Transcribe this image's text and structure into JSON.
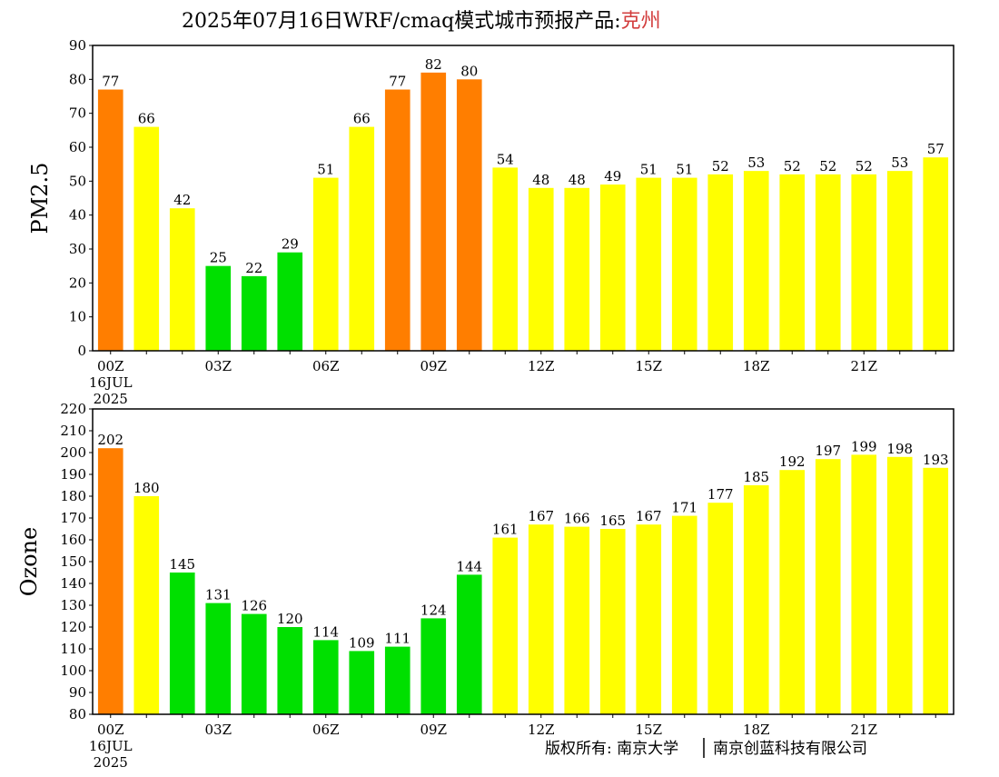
{
  "header": {
    "title_prefix": "2025年07月16日WRF/cmaq模式城市预报产品:",
    "city": "克州",
    "city_color": "#d23c3c"
  },
  "footer": {
    "copyright_left": "版权所有: 南京大学",
    "copyright_right": "南京创蓝科技有限公司"
  },
  "colors": {
    "good": "#00e000",
    "moderate": "#ffff00",
    "unhealthy_sensitive": "#ff7e00"
  },
  "chart_data": [
    {
      "type": "bar",
      "ylabel": "PM2.5",
      "ylim": [
        0,
        90
      ],
      "yticks": [
        0,
        10,
        20,
        30,
        40,
        50,
        60,
        70,
        80,
        90
      ],
      "xtick_labels": [
        {
          "index": 0,
          "lines": [
            "00Z",
            "16JUL",
            "2025"
          ]
        },
        {
          "index": 3,
          "lines": [
            "03Z"
          ]
        },
        {
          "index": 6,
          "lines": [
            "06Z"
          ]
        },
        {
          "index": 9,
          "lines": [
            "09Z"
          ]
        },
        {
          "index": 12,
          "lines": [
            "12Z"
          ]
        },
        {
          "index": 15,
          "lines": [
            "15Z"
          ]
        },
        {
          "index": 18,
          "lines": [
            "18Z"
          ]
        },
        {
          "index": 21,
          "lines": [
            "21Z"
          ]
        }
      ],
      "values": [
        77,
        66,
        42,
        25,
        22,
        29,
        51,
        66,
        77,
        82,
        80,
        54,
        48,
        48,
        49,
        51,
        51,
        52,
        53,
        52,
        52,
        52,
        53,
        57
      ],
      "bar_colors": [
        "#ff7e00",
        "#ffff00",
        "#ffff00",
        "#00e000",
        "#00e000",
        "#00e000",
        "#ffff00",
        "#ffff00",
        "#ff7e00",
        "#ff7e00",
        "#ff7e00",
        "#ffff00",
        "#ffff00",
        "#ffff00",
        "#ffff00",
        "#ffff00",
        "#ffff00",
        "#ffff00",
        "#ffff00",
        "#ffff00",
        "#ffff00",
        "#ffff00",
        "#ffff00",
        "#ffff00"
      ],
      "grid": false
    },
    {
      "type": "bar",
      "ylabel": "Ozone",
      "ylim": [
        80,
        220
      ],
      "yticks": [
        80,
        90,
        100,
        110,
        120,
        130,
        140,
        150,
        160,
        170,
        180,
        190,
        200,
        210,
        220
      ],
      "xtick_labels": [
        {
          "index": 0,
          "lines": [
            "00Z",
            "16JUL",
            "2025"
          ]
        },
        {
          "index": 3,
          "lines": [
            "03Z"
          ]
        },
        {
          "index": 6,
          "lines": [
            "06Z"
          ]
        },
        {
          "index": 9,
          "lines": [
            "09Z"
          ]
        },
        {
          "index": 12,
          "lines": [
            "12Z"
          ]
        },
        {
          "index": 15,
          "lines": [
            "15Z"
          ]
        },
        {
          "index": 18,
          "lines": [
            "18Z"
          ]
        },
        {
          "index": 21,
          "lines": [
            "21Z"
          ]
        }
      ],
      "values": [
        202,
        180,
        145,
        131,
        126,
        120,
        114,
        109,
        111,
        124,
        144,
        161,
        167,
        166,
        165,
        167,
        171,
        177,
        185,
        192,
        197,
        199,
        198,
        193
      ],
      "bar_colors": [
        "#ff7e00",
        "#ffff00",
        "#00e000",
        "#00e000",
        "#00e000",
        "#00e000",
        "#00e000",
        "#00e000",
        "#00e000",
        "#00e000",
        "#00e000",
        "#ffff00",
        "#ffff00",
        "#ffff00",
        "#ffff00",
        "#ffff00",
        "#ffff00",
        "#ffff00",
        "#ffff00",
        "#ffff00",
        "#ffff00",
        "#ffff00",
        "#ffff00",
        "#ffff00"
      ],
      "grid": false
    }
  ]
}
